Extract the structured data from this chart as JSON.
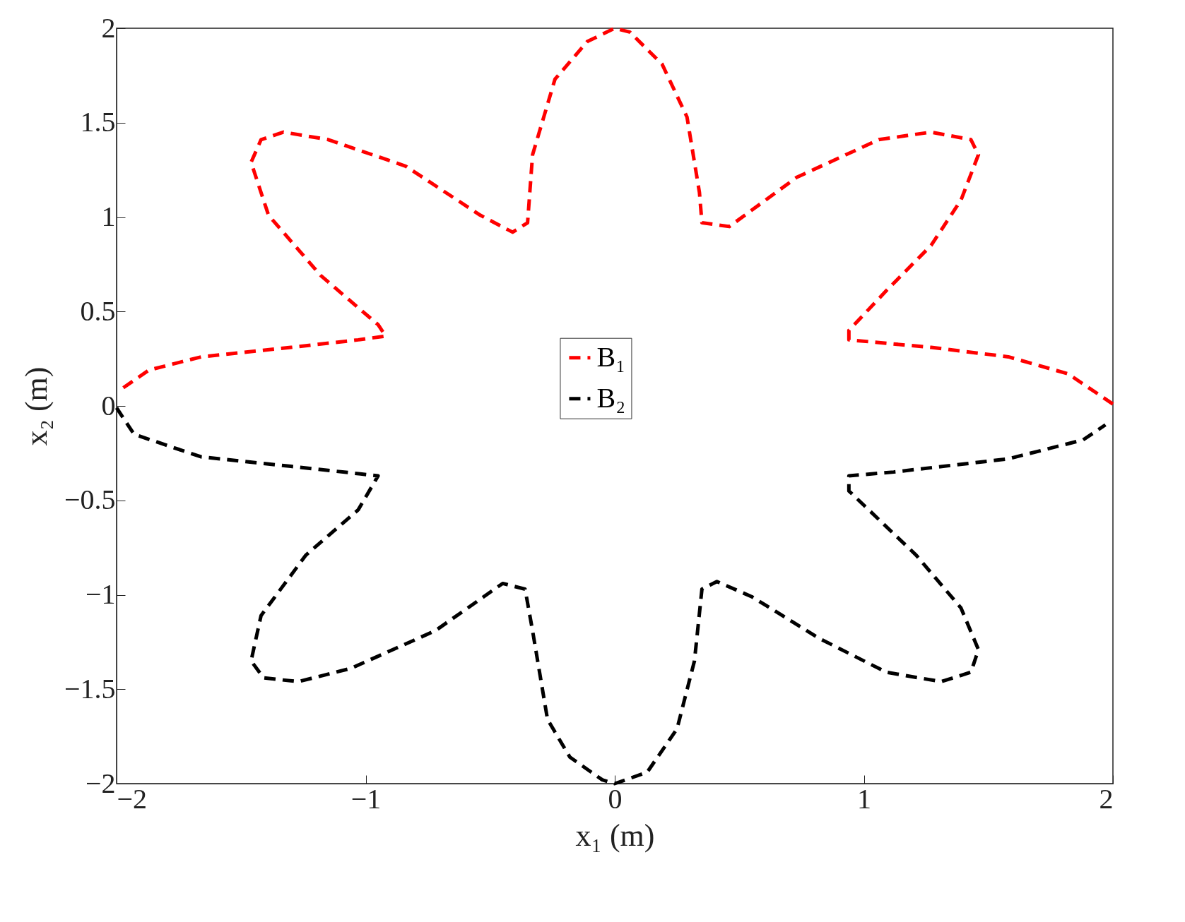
{
  "chart_data": {
    "type": "line",
    "xlabel": "x₁ (m)",
    "ylabel": "x₂ (m)",
    "xlim": [
      -2,
      2
    ],
    "ylim": [
      -2,
      2
    ],
    "xticks": [
      -2,
      -1,
      0,
      1,
      2
    ],
    "yticks": [
      -2,
      -1.5,
      -1,
      -0.5,
      0,
      0.5,
      1,
      1.5,
      2
    ],
    "grid": false,
    "legend": "center",
    "line_style": "dashed",
    "marker": "none",
    "series": [
      {
        "name": "B₁",
        "color": "#ff0000",
        "x": [
          2,
          1.82,
          1.58,
          1.27,
          0.94,
          0.94,
          1.09,
          1.27,
          1.39,
          1.46,
          1.43,
          1.27,
          1.06,
          0.73,
          0.46,
          0.35,
          0.34,
          0.29,
          0.19,
          0.06,
          0,
          -0.11,
          -0.24,
          -0.33,
          -0.35,
          -0.41,
          -0.54,
          -0.84,
          -1.15,
          -1.33,
          -1.42,
          -1.46,
          -1.39,
          -1.18,
          -0.95,
          -0.92,
          -1.03,
          -1.3,
          -1.66,
          -1.87,
          -1.98
        ],
        "values": [
          0.01,
          0.17,
          0.26,
          0.31,
          0.35,
          0.4,
          0.61,
          0.85,
          1.09,
          1.33,
          1.41,
          1.45,
          1.41,
          1.21,
          0.95,
          0.97,
          1.13,
          1.53,
          1.81,
          1.98,
          2,
          1.93,
          1.73,
          1.33,
          0.97,
          0.92,
          1.01,
          1.27,
          1.41,
          1.45,
          1.41,
          1.29,
          1.01,
          0.69,
          0.43,
          0.37,
          0.35,
          0.31,
          0.26,
          0.19,
          0.09
        ]
      },
      {
        "name": "B₂",
        "color": "#000000",
        "x": [
          -2,
          -1.93,
          -1.66,
          -1.3,
          -0.95,
          -1.03,
          -1.24,
          -1.42,
          -1.46,
          -1.41,
          -1.27,
          -1.06,
          -0.72,
          -0.45,
          -0.36,
          -0.33,
          -0.27,
          -0.18,
          -0.05,
          0,
          0.13,
          0.25,
          0.32,
          0.35,
          0.41,
          0.55,
          0.82,
          1.09,
          1.31,
          1.43,
          1.46,
          1.39,
          1.21,
          0.94,
          0.94,
          1.12,
          1.58,
          1.88,
          1.97
        ],
        "values": [
          -0.01,
          -0.15,
          -0.27,
          -0.32,
          -0.37,
          -0.55,
          -0.79,
          -1.11,
          -1.35,
          -1.44,
          -1.46,
          -1.39,
          -1.19,
          -0.94,
          -0.97,
          -1.19,
          -1.66,
          -1.86,
          -1.98,
          -2,
          -1.94,
          -1.71,
          -1.35,
          -0.97,
          -0.93,
          -1.01,
          -1.23,
          -1.41,
          -1.46,
          -1.41,
          -1.29,
          -1.07,
          -0.79,
          -0.45,
          -0.37,
          -0.35,
          -0.28,
          -0.18,
          -0.1
        ]
      }
    ]
  }
}
